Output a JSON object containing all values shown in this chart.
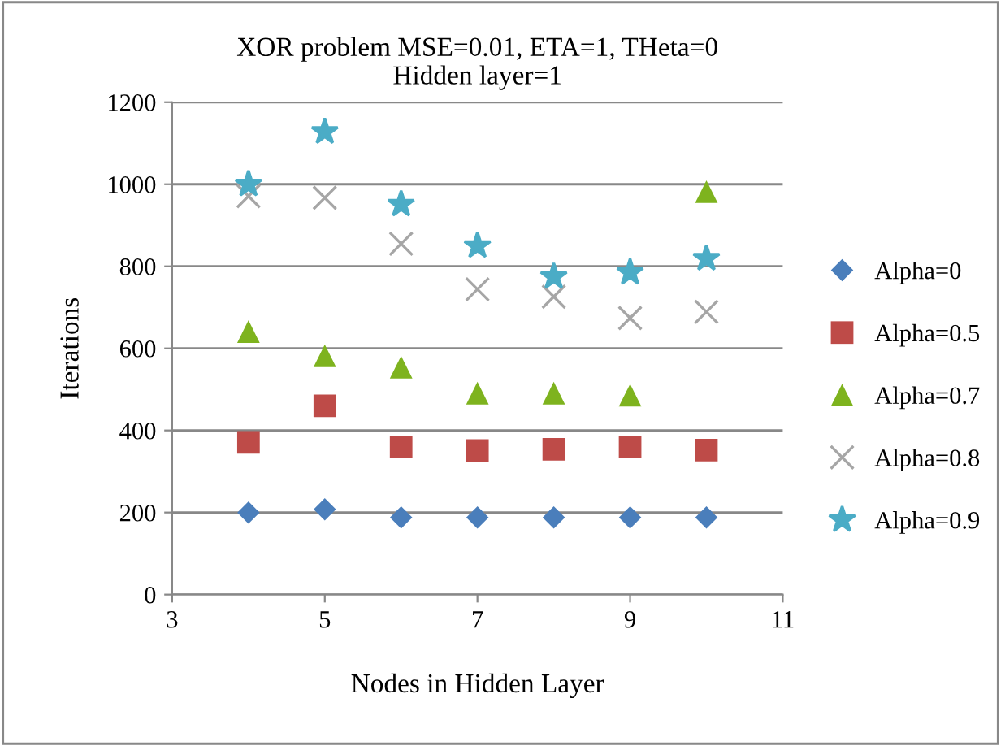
{
  "chart_data": {
    "type": "scatter",
    "title": "XOR problem MSE=0.01, ETA=1, THeta=0\nHidden layer=1",
    "xlabel": "Nodes in Hidden Layer",
    "ylabel": "Iterations",
    "x": [
      4,
      5,
      6,
      7,
      8,
      9,
      10
    ],
    "series": [
      {
        "name": "Alpha=0",
        "color": "#4a7ebb",
        "marker": "diamond",
        "values": [
          200,
          208,
          188,
          188,
          188,
          188,
          188
        ]
      },
      {
        "name": "Alpha=0.5",
        "color": "#be4b48",
        "marker": "square",
        "values": [
          371,
          460,
          360,
          351,
          354,
          360,
          352
        ]
      },
      {
        "name": "Alpha=0.7",
        "color": "#7eb31e",
        "marker": "triangle",
        "values": [
          641,
          582,
          554,
          491,
          491,
          486,
          982
        ]
      },
      {
        "name": "Alpha=0.8",
        "color": "#a6a6a6",
        "marker": "cross",
        "values": [
          971,
          967,
          855,
          744,
          726,
          674,
          689
        ]
      },
      {
        "name": "Alpha=0.9",
        "color": "#4bacc6",
        "marker": "star",
        "values": [
          1000,
          1128,
          951,
          850,
          775,
          785,
          819
        ]
      }
    ],
    "xlim": [
      3,
      11
    ],
    "xticks": [
      3,
      5,
      7,
      9,
      11
    ],
    "ylim": [
      0,
      1200
    ],
    "yticks": [
      0,
      200,
      400,
      600,
      800,
      1000,
      1200
    ],
    "grid": "y",
    "legend": "right"
  }
}
